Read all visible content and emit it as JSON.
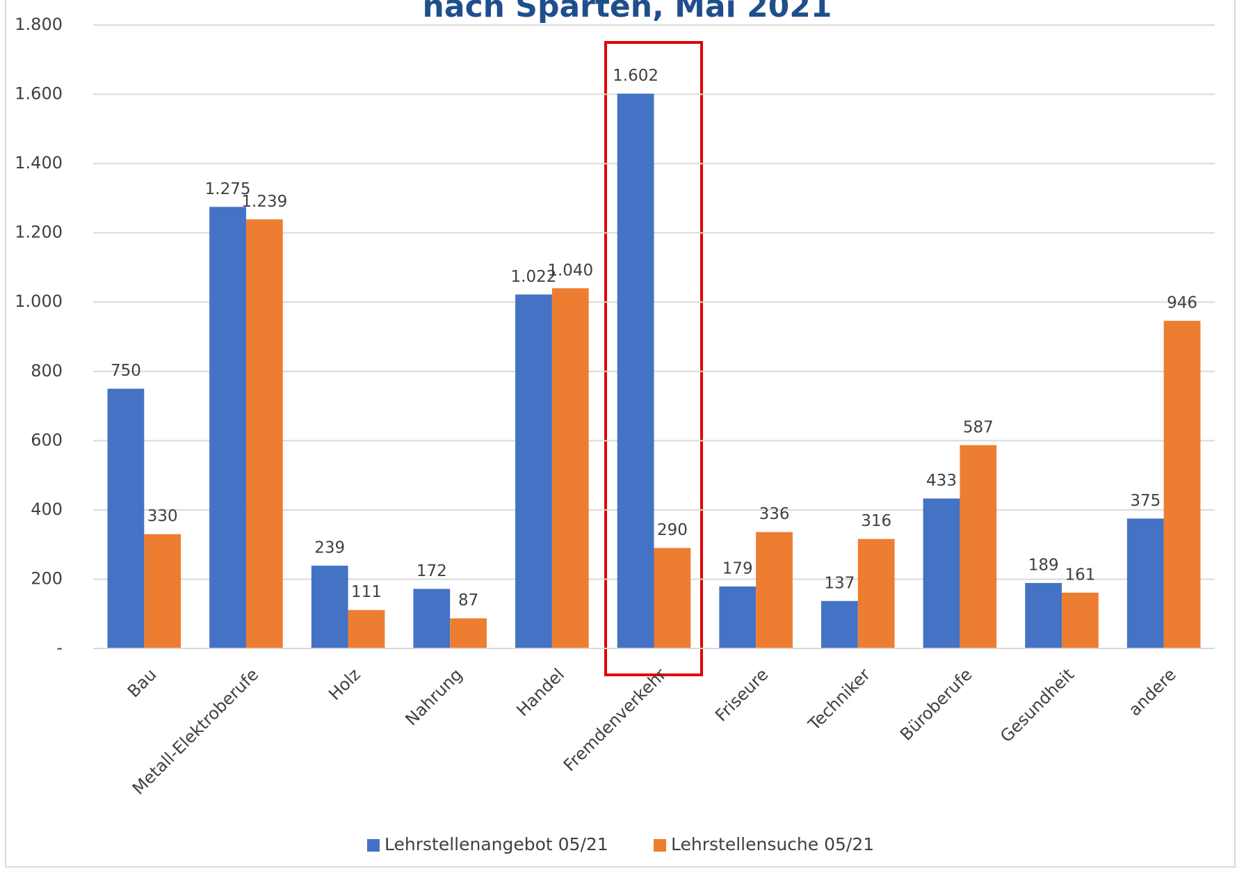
{
  "chart_data": {
    "type": "bar",
    "title": "nach Sparten, Mai 2021",
    "categories": [
      "Bau",
      "Metall-Elektroberufe",
      "Holz",
      "Nahrung",
      "Handel",
      "Fremdenverkehr",
      "Friseure",
      "Techniker",
      "Büroberufe",
      "Gesundheit",
      "andere"
    ],
    "series": [
      {
        "name": "Lehrstellenangebot 05/21",
        "color": "#4472c4",
        "values": [
          750,
          1275,
          239,
          172,
          1022,
          1602,
          179,
          137,
          433,
          189,
          375
        ],
        "value_labels": [
          "750",
          "1.275",
          "239",
          "172",
          "1.022",
          "1.602",
          "179",
          "137",
          "433",
          "189",
          "375"
        ]
      },
      {
        "name": "Lehrstellensuche 05/21",
        "color": "#ed7d31",
        "values": [
          330,
          1239,
          111,
          87,
          1040,
          290,
          336,
          316,
          587,
          161,
          946
        ],
        "value_labels": [
          "330",
          "1.239",
          "111",
          "87",
          "1.040",
          "290",
          "336",
          "316",
          "587",
          "161",
          "946"
        ]
      }
    ],
    "ylim": [
      0,
      1800
    ],
    "yticks": [
      {
        "value": 0,
        "label": "-"
      },
      200,
      400,
      600,
      800,
      {
        "value": 1000,
        "label": "1.000"
      },
      {
        "value": 1200,
        "label": "1.200"
      },
      {
        "value": 1400,
        "label": "1.400"
      },
      {
        "value": 1600,
        "label": "1.600"
      },
      {
        "value": 1800,
        "label": "1.800"
      }
    ],
    "grid": true,
    "legend": "bottom"
  }
}
